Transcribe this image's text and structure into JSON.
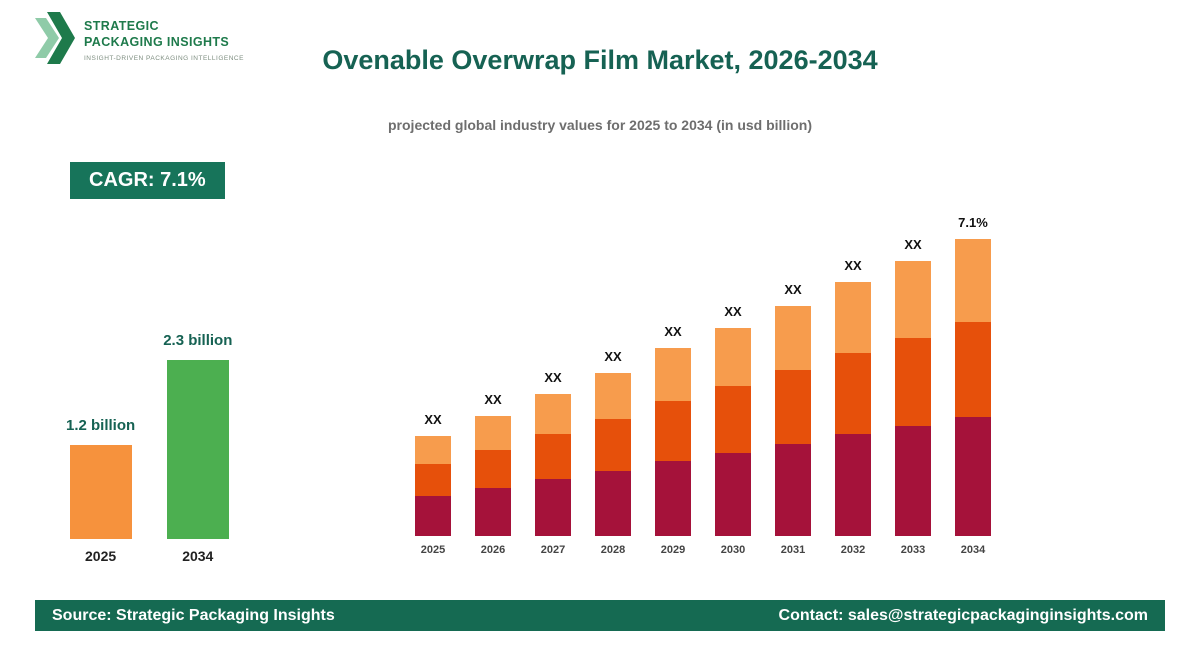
{
  "brand": {
    "name_line1": "STRATEGIC",
    "name_line2": "PACKAGING INSIGHTS",
    "tagline": "INSIGHT-DRIVEN PACKAGING INTELLIGENCE",
    "logo_color_dark": "#1E7A4B",
    "logo_color_light": "#8FCBA8"
  },
  "header": {
    "title": "Ovenable Overwrap Film Market, 2026-2034",
    "subtitle": "projected global industry values for 2025 to 2034 (in usd billion)"
  },
  "cagr_badge": {
    "label": "CAGR: 7.1%",
    "background": "#17745A"
  },
  "chart_data": [
    {
      "name": "market-size-comparison",
      "type": "bar",
      "title": "",
      "categories": [
        "2025",
        "2034"
      ],
      "values": [
        1.2,
        2.3
      ],
      "value_labels": [
        "1.2 billion",
        "2.3 billion"
      ],
      "bar_colors": [
        "#F6923D",
        "#4CAF50"
      ],
      "unit": "usd billion",
      "ylim": [
        0,
        2.5
      ],
      "grid": false,
      "axes_shown": false
    },
    {
      "name": "yearly-stacked-projection",
      "type": "bar",
      "subtype": "stacked-bar",
      "title": "",
      "categories": [
        "2025",
        "2026",
        "2027",
        "2028",
        "2029",
        "2030",
        "2031",
        "2032",
        "2033",
        "2034"
      ],
      "bar_labels": [
        "XX",
        "XX",
        "XX",
        "XX",
        "XX",
        "XX",
        "XX",
        "XX",
        "XX",
        "7.1%"
      ],
      "series": [
        {
          "name": "segment-bottom",
          "color": "#A5123A",
          "values": [
            40,
            48,
            57,
            65,
            75,
            83,
            92,
            102,
            110,
            119
          ]
        },
        {
          "name": "segment-middle",
          "color": "#E6500B",
          "values": [
            32,
            38,
            45,
            52,
            60,
            67,
            74,
            81,
            88,
            95
          ]
        },
        {
          "name": "segment-top",
          "color": "#F79C4D",
          "values": [
            28,
            34,
            40,
            46,
            53,
            58,
            64,
            71,
            77,
            83
          ]
        }
      ],
      "unit": "relative height (numeric values masked as XX in the image)",
      "grid": false,
      "axes_shown": false,
      "legend": "none"
    }
  ],
  "footer": {
    "source": "Source: Strategic Packaging Insights",
    "contact": "Contact: sales@strategicpackaginginsights.com",
    "background": "#156A52"
  }
}
